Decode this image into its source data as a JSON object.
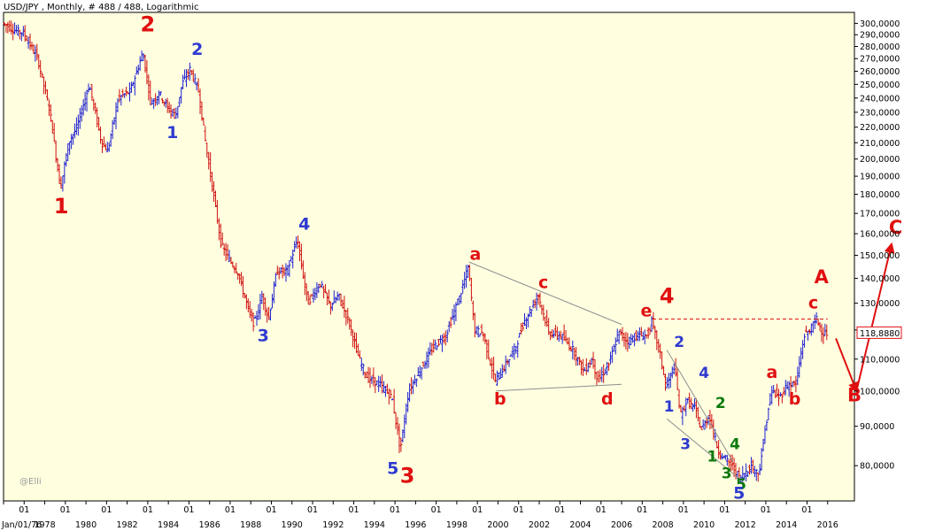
{
  "header": {
    "title": "USD/JPY , Monthly, # 488 / 488, Logarithmic"
  },
  "watermark": "@Elli",
  "last_price_label": "118,8880",
  "colors": {
    "background": "#ffffe0",
    "up_bar": "#1f1fd0",
    "down_bar": "#d01010",
    "wave_red": "#e01010",
    "wave_blue": "#2e3ad0",
    "wave_green": "#0b7a0b",
    "trendline": "#8f8f8f",
    "dashed_line": "#e01010"
  },
  "chart_data": {
    "type": "ohlc",
    "symbol": "USD/JPY",
    "timeframe": "Monthly",
    "scale": "log",
    "ylim": [
      72,
      310
    ],
    "xlim": [
      1976.0,
      2017.3
    ],
    "grid": false,
    "y_ticks": [
      80,
      90,
      100,
      110,
      120,
      130,
      140,
      150,
      160,
      170,
      180,
      190,
      200,
      210,
      220,
      230,
      240,
      250,
      260,
      270,
      280,
      290,
      300
    ],
    "y_tick_labels": [
      "80,0000",
      "90,0000",
      "100,0000",
      "110,0000",
      "120,0000",
      "130,0000",
      "140,0000",
      "150,0000",
      "160,0000",
      "170,0000",
      "180,0000",
      "190,0000",
      "200,0000",
      "210,0000",
      "220,0000",
      "230,0000",
      "240,0000",
      "250,0000",
      "260,0000",
      "270,0000",
      "280,0000",
      "290,0000",
      "300,0000"
    ],
    "x_ticks": [
      {
        "year": 1976.0,
        "label": "Jan/01/76"
      },
      {
        "year": 1977.0,
        "label": "01"
      },
      {
        "year": 1978.0,
        "label": "1978"
      },
      {
        "year": 1979.0,
        "label": "01"
      },
      {
        "year": 1980.0,
        "label": "1980"
      },
      {
        "year": 1981.0,
        "label": "01"
      },
      {
        "year": 1982.0,
        "label": "1982"
      },
      {
        "year": 1983.0,
        "label": "01"
      },
      {
        "year": 1984.0,
        "label": "1984"
      },
      {
        "year": 1985.0,
        "label": "01"
      },
      {
        "year": 1986.0,
        "label": "1986"
      },
      {
        "year": 1987.0,
        "label": "01"
      },
      {
        "year": 1988.0,
        "label": "1988"
      },
      {
        "year": 1989.0,
        "label": "01"
      },
      {
        "year": 1990.0,
        "label": "1990"
      },
      {
        "year": 1991.0,
        "label": "01"
      },
      {
        "year": 1992.0,
        "label": "1992"
      },
      {
        "year": 1993.0,
        "label": "01"
      },
      {
        "year": 1994.0,
        "label": "1994"
      },
      {
        "year": 1995.0,
        "label": "01"
      },
      {
        "year": 1996.0,
        "label": "1996"
      },
      {
        "year": 1997.0,
        "label": "01"
      },
      {
        "year": 1998.0,
        "label": "1998"
      },
      {
        "year": 1999.0,
        "label": "01"
      },
      {
        "year": 2000.0,
        "label": "2000"
      },
      {
        "year": 2001.0,
        "label": "01"
      },
      {
        "year": 2002.0,
        "label": "2002"
      },
      {
        "year": 2003.0,
        "label": "01"
      },
      {
        "year": 2004.0,
        "label": "2004"
      },
      {
        "year": 2005.0,
        "label": "01"
      },
      {
        "year": 2006.0,
        "label": "2006"
      },
      {
        "year": 2007.0,
        "label": "01"
      },
      {
        "year": 2008.0,
        "label": "2008"
      },
      {
        "year": 2009.0,
        "label": "01"
      },
      {
        "year": 2010.0,
        "label": "2010"
      },
      {
        "year": 2011.0,
        "label": "01"
      },
      {
        "year": 2012.0,
        "label": "2012"
      },
      {
        "year": 2013.0,
        "label": "01"
      },
      {
        "year": 2014.0,
        "label": "2014"
      },
      {
        "year": 2015.0,
        "label": "01"
      },
      {
        "year": 2016.0,
        "label": "2016"
      }
    ],
    "price_path": [
      [
        1976.0,
        300
      ],
      [
        1976.7,
        293
      ],
      [
        1977.0,
        292
      ],
      [
        1977.7,
        270
      ],
      [
        1978.3,
        230
      ],
      [
        1978.8,
        183
      ],
      [
        1979.2,
        210
      ],
      [
        1979.6,
        220
      ],
      [
        1980.2,
        250
      ],
      [
        1980.8,
        210
      ],
      [
        1981.1,
        205
      ],
      [
        1981.6,
        240
      ],
      [
        1982.2,
        245
      ],
      [
        1982.8,
        275
      ],
      [
        1983.2,
        236
      ],
      [
        1983.6,
        244
      ],
      [
        1984.0,
        233
      ],
      [
        1984.4,
        228
      ],
      [
        1984.7,
        250
      ],
      [
        1985.1,
        262
      ],
      [
        1985.5,
        245
      ],
      [
        1985.9,
        205
      ],
      [
        1986.3,
        175
      ],
      [
        1986.6,
        155
      ],
      [
        1987.0,
        148
      ],
      [
        1987.4,
        143
      ],
      [
        1987.9,
        128
      ],
      [
        1988.2,
        122
      ],
      [
        1988.6,
        133
      ],
      [
        1988.9,
        124
      ],
      [
        1989.3,
        143
      ],
      [
        1989.8,
        143
      ],
      [
        1990.3,
        157
      ],
      [
        1990.8,
        130
      ],
      [
        1991.4,
        138
      ],
      [
        1991.9,
        129
      ],
      [
        1992.3,
        133
      ],
      [
        1992.8,
        123
      ],
      [
        1993.3,
        110
      ],
      [
        1993.7,
        104
      ],
      [
        1994.3,
        102
      ],
      [
        1994.9,
        98
      ],
      [
        1995.3,
        84
      ],
      [
        1995.7,
        100
      ],
      [
        1996.3,
        107
      ],
      [
        1996.9,
        114
      ],
      [
        1997.5,
        118
      ],
      [
        1998.2,
        133
      ],
      [
        1998.6,
        145
      ],
      [
        1998.9,
        120
      ],
      [
        1999.3,
        119
      ],
      [
        1999.9,
        103
      ],
      [
        2000.3,
        107
      ],
      [
        2000.9,
        114
      ],
      [
        2001.3,
        123
      ],
      [
        2002.0,
        133
      ],
      [
        2002.5,
        119
      ],
      [
        2003.1,
        118
      ],
      [
        2003.7,
        113
      ],
      [
        2004.2,
        106
      ],
      [
        2004.6,
        110
      ],
      [
        2004.9,
        103
      ],
      [
        2005.4,
        108
      ],
      [
        2005.9,
        119
      ],
      [
        2006.3,
        116
      ],
      [
        2006.8,
        118
      ],
      [
        2007.3,
        118
      ],
      [
        2007.5,
        123
      ],
      [
        2007.9,
        112
      ],
      [
        2008.2,
        101
      ],
      [
        2008.6,
        108
      ],
      [
        2008.9,
        93
      ],
      [
        2009.2,
        97
      ],
      [
        2009.6,
        95
      ],
      [
        2009.9,
        89
      ],
      [
        2010.3,
        93
      ],
      [
        2010.7,
        84
      ],
      [
        2011.0,
        82
      ],
      [
        2011.4,
        80
      ],
      [
        2011.8,
        77
      ],
      [
        2012.3,
        80
      ],
      [
        2012.7,
        78
      ],
      [
        2013.0,
        89
      ],
      [
        2013.3,
        100
      ],
      [
        2013.7,
        98
      ],
      [
        2014.1,
        102
      ],
      [
        2014.5,
        102
      ],
      [
        2014.9,
        118
      ],
      [
        2015.2,
        120
      ],
      [
        2015.5,
        124
      ],
      [
        2015.8,
        119
      ],
      [
        2016.0,
        118.9
      ]
    ],
    "last_price": 118.888,
    "trendlines": [
      {
        "style": "solid",
        "color": "trendline",
        "from": [
          1998.6,
          147
        ],
        "to": [
          2006.0,
          122
        ]
      },
      {
        "style": "solid",
        "color": "trendline",
        "from": [
          1999.9,
          100
        ],
        "to": [
          2006.0,
          102
        ]
      },
      {
        "style": "solid",
        "color": "trendline",
        "from": [
          2008.2,
          113
        ],
        "to": [
          2011.4,
          81
        ]
      },
      {
        "style": "solid",
        "color": "trendline",
        "from": [
          2008.2,
          92
        ],
        "to": [
          2011.7,
          77
        ]
      },
      {
        "style": "dashed",
        "color": "dashed_line",
        "from": [
          2007.5,
          124
        ],
        "to": [
          2016.0,
          124
        ]
      }
    ],
    "projection_arrows": [
      {
        "from": [
          2016.4,
          117
        ],
        "to": [
          2017.4,
          100
        ]
      },
      {
        "from": [
          2017.4,
          100
        ],
        "to": [
          2019.1,
          155
        ]
      }
    ],
    "wave_labels": [
      {
        "text": "1",
        "year": 1978.8,
        "price": 170,
        "color": "wave_red",
        "size": 24
      },
      {
        "text": "2",
        "year": 1983.0,
        "price": 293,
        "color": "wave_red",
        "size": 24
      },
      {
        "text": "2",
        "year": 1985.4,
        "price": 273,
        "color": "wave_blue",
        "size": 19
      },
      {
        "text": "1",
        "year": 1984.2,
        "price": 213,
        "color": "wave_blue",
        "size": 19
      },
      {
        "text": "4",
        "year": 1990.6,
        "price": 162,
        "color": "wave_blue",
        "size": 19
      },
      {
        "text": "3",
        "year": 1988.6,
        "price": 116,
        "color": "wave_blue",
        "size": 19
      },
      {
        "text": "5",
        "year": 1994.9,
        "price": 78,
        "color": "wave_blue",
        "size": 19
      },
      {
        "text": "3",
        "year": 1995.6,
        "price": 76,
        "color": "wave_red",
        "size": 24
      },
      {
        "text": "a",
        "year": 1998.9,
        "price": 148,
        "color": "wave_red",
        "size": 19
      },
      {
        "text": "b",
        "year": 2000.1,
        "price": 96,
        "color": "wave_red",
        "size": 19
      },
      {
        "text": "c",
        "year": 2002.2,
        "price": 136,
        "color": "wave_red",
        "size": 19
      },
      {
        "text": "d",
        "year": 2005.3,
        "price": 96,
        "color": "wave_red",
        "size": 19
      },
      {
        "text": "e",
        "year": 2007.2,
        "price": 125,
        "color": "wave_red",
        "size": 19
      },
      {
        "text": "4",
        "year": 2008.2,
        "price": 130,
        "color": "wave_red",
        "size": 24
      },
      {
        "text": "2",
        "year": 2008.8,
        "price": 114,
        "color": "wave_blue",
        "size": 17
      },
      {
        "text": "4",
        "year": 2010.0,
        "price": 104,
        "color": "wave_blue",
        "size": 17
      },
      {
        "text": "1",
        "year": 2008.3,
        "price": 94,
        "color": "wave_blue",
        "size": 17
      },
      {
        "text": "3",
        "year": 2009.1,
        "price": 84,
        "color": "wave_blue",
        "size": 17
      },
      {
        "text": "2",
        "year": 2010.8,
        "price": 95,
        "color": "wave_green",
        "size": 17
      },
      {
        "text": "1",
        "year": 2010.4,
        "price": 81,
        "color": "wave_green",
        "size": 17
      },
      {
        "text": "4",
        "year": 2011.5,
        "price": 84,
        "color": "wave_green",
        "size": 17
      },
      {
        "text": "3",
        "year": 2011.1,
        "price": 77,
        "color": "wave_green",
        "size": 17
      },
      {
        "text": "5",
        "year": 2011.8,
        "price": 74.5,
        "color": "wave_green",
        "size": 17
      },
      {
        "text": "5",
        "year": 2011.7,
        "price": 72.5,
        "color": "wave_blue",
        "size": 19
      },
      {
        "text": "a",
        "year": 2013.3,
        "price": 104,
        "color": "wave_red",
        "size": 19
      },
      {
        "text": "b",
        "year": 2014.4,
        "price": 96,
        "color": "wave_red",
        "size": 19
      },
      {
        "text": "c",
        "year": 2015.3,
        "price": 128,
        "color": "wave_red",
        "size": 19
      },
      {
        "text": "A",
        "year": 2015.7,
        "price": 138,
        "color": "wave_red",
        "size": 21
      },
      {
        "text": "B",
        "year": 2017.3,
        "price": 97,
        "color": "wave_red",
        "size": 21
      },
      {
        "text": "C",
        "year": 2019.3,
        "price": 160,
        "color": "wave_red",
        "size": 21
      }
    ]
  }
}
